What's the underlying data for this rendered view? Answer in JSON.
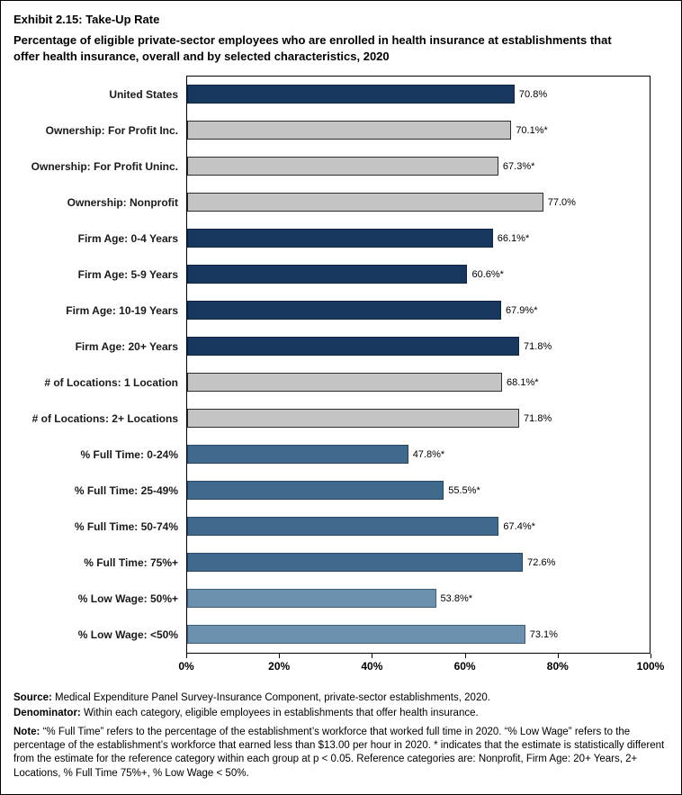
{
  "header": {
    "title": "Exhibit 2.15: Take-Up Rate",
    "subtitle": "Percentage of eligible private-sector employees who are enrolled in health insurance at establishments that offer health insurance, overall and by selected characteristics, 2020"
  },
  "chart_data": {
    "type": "bar",
    "orientation": "horizontal",
    "title": "Exhibit 2.15: Take-Up Rate",
    "xlabel": "",
    "ylabel": "",
    "xlim": [
      0,
      100
    ],
    "x_ticks": [
      "0%",
      "20%",
      "40%",
      "60%",
      "80%",
      "100%"
    ],
    "grid": false,
    "colors": {
      "navy": "#17375E",
      "gray": "#C4C4C4",
      "steel": "#3F6A8E",
      "lightsteel": "#6D90AE"
    },
    "border_colors": {
      "navy": "#0F2540",
      "gray": "#2b2b2b",
      "steel": "#27455E",
      "lightsteel": "#3E5F78"
    },
    "items": [
      {
        "label": "United States",
        "value": 70.8,
        "display": "70.8%",
        "group": "navy"
      },
      {
        "label": "Ownership: For Profit Inc.",
        "value": 70.1,
        "display": "70.1%*",
        "group": "gray"
      },
      {
        "label": "Ownership: For Profit Uninc.",
        "value": 67.3,
        "display": "67.3%*",
        "group": "gray"
      },
      {
        "label": "Ownership: Nonprofit",
        "value": 77.0,
        "display": "77.0%",
        "group": "gray"
      },
      {
        "label": "Firm Age: 0-4 Years",
        "value": 66.1,
        "display": "66.1%*",
        "group": "navy"
      },
      {
        "label": "Firm Age: 5-9 Years",
        "value": 60.6,
        "display": "60.6%*",
        "group": "navy"
      },
      {
        "label": "Firm Age: 10-19 Years",
        "value": 67.9,
        "display": "67.9%*",
        "group": "navy"
      },
      {
        "label": "Firm Age: 20+ Years",
        "value": 71.8,
        "display": "71.8%",
        "group": "navy"
      },
      {
        "label": "# of Locations: 1 Location",
        "value": 68.1,
        "display": "68.1%*",
        "group": "gray"
      },
      {
        "label": "# of Locations: 2+ Locations",
        "value": 71.8,
        "display": "71.8%",
        "group": "gray"
      },
      {
        "label": "% Full Time: 0-24%",
        "value": 47.8,
        "display": "47.8%*",
        "group": "steel"
      },
      {
        "label": "% Full Time: 25-49%",
        "value": 55.5,
        "display": "55.5%*",
        "group": "steel"
      },
      {
        "label": "% Full Time: 50-74%",
        "value": 67.4,
        "display": "67.4%*",
        "group": "steel"
      },
      {
        "label": "% Full Time: 75%+",
        "value": 72.6,
        "display": "72.6%",
        "group": "steel"
      },
      {
        "label": "% Low Wage: 50%+",
        "value": 53.8,
        "display": "53.8%*",
        "group": "lightsteel"
      },
      {
        "label": "% Low Wage: <50%",
        "value": 73.1,
        "display": "73.1%",
        "group": "lightsteel"
      }
    ]
  },
  "footer": {
    "source_label": "Source:",
    "source_text": "Medical Expenditure Panel Survey-Insurance Component, private-sector establishments, 2020.",
    "denominator_label": "Denominator:",
    "denominator_text": "Within each category, eligible employees in establishments that offer health insurance.",
    "note_label": "Note:",
    "note_text": "“% Full Time” refers to the percentage of the establishment’s workforce that worked full time in 2020. “% Low Wage” refers to the percentage of the establishment’s workforce that earned less than $13.00 per hour in 2020. * indicates that the estimate is statistically different from the estimate for the reference category within each group at p < 0.05. Reference categories are: Nonprofit, Firm Age: 20+ Years, 2+ Locations, % Full Time 75%+, % Low Wage < 50%."
  }
}
